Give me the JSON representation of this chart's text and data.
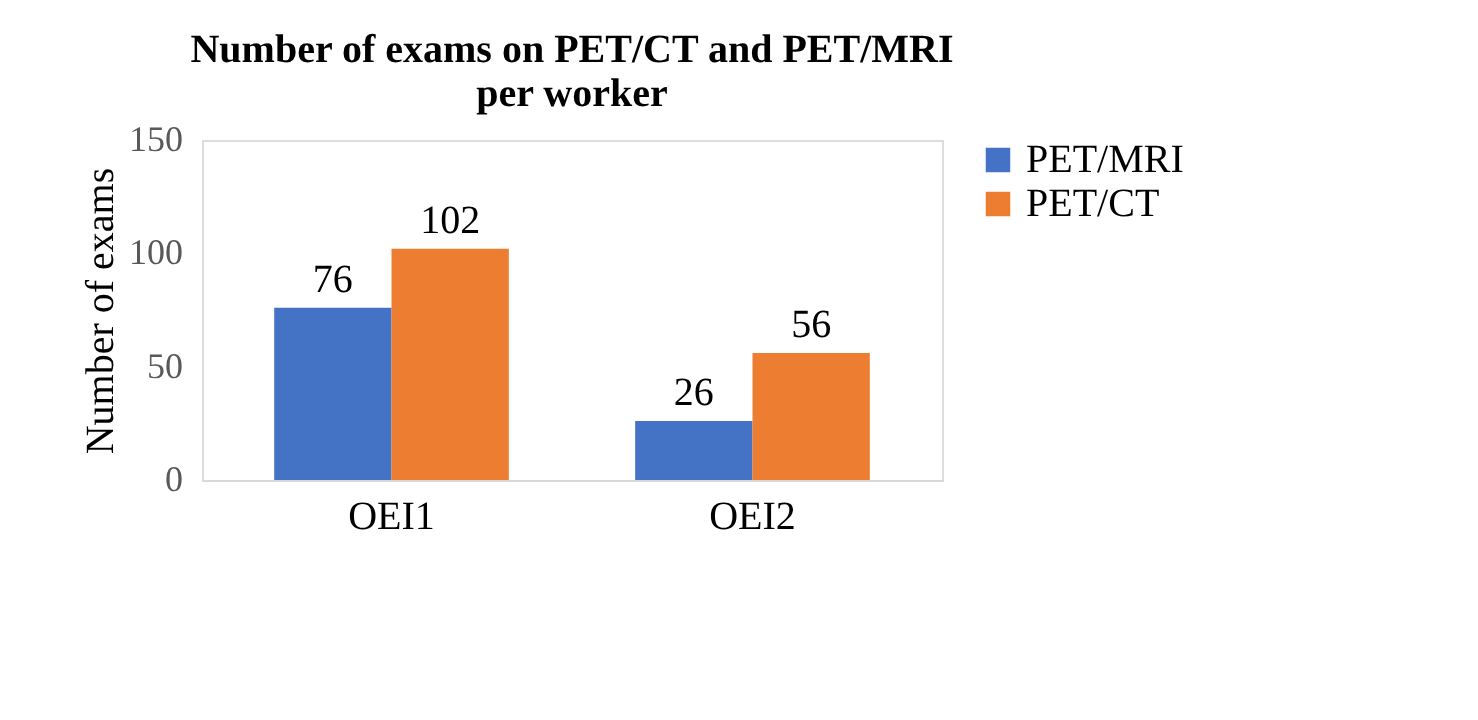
{
  "chart_data": {
    "type": "bar",
    "title": "Number of exams on PET/CT and PET/MRI per worker",
    "ylabel": "Number of exams",
    "categories": [
      "OEI1",
      "OEI2"
    ],
    "series": [
      {
        "name": "PET/MRI",
        "color": "#4472c4",
        "values": [
          76,
          26
        ]
      },
      {
        "name": "PET/CT",
        "color": "#ed7d31",
        "values": [
          102,
          56
        ]
      }
    ],
    "ylim": [
      0,
      150
    ],
    "yticks": [
      0,
      50,
      100,
      150
    ],
    "grid": false,
    "legend": "right",
    "data_labels": true
  }
}
